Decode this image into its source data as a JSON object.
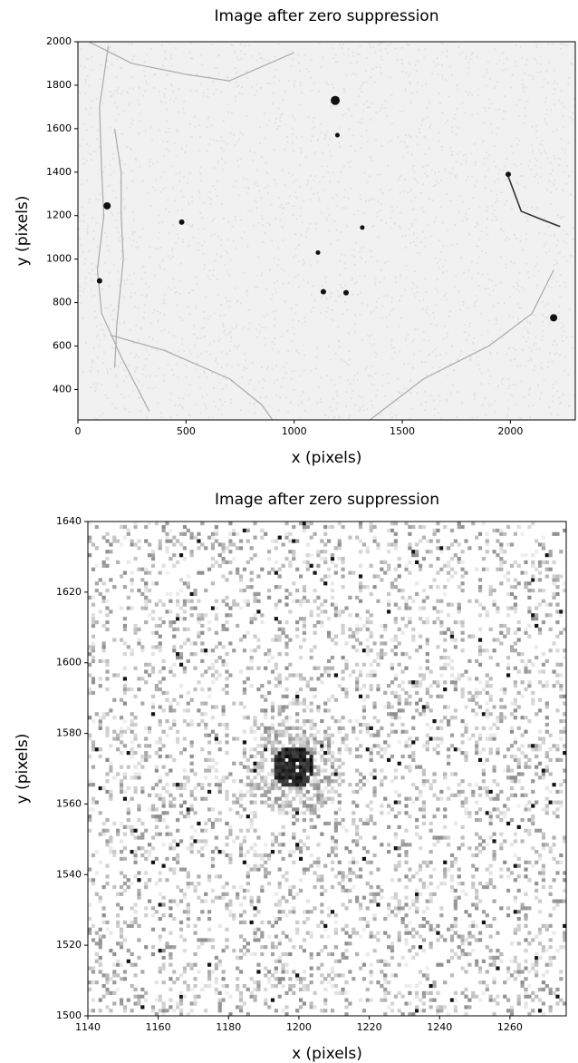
{
  "chart_data": [
    {
      "type": "image",
      "title": "Image after zero suppression",
      "x_label": "x (pixels)",
      "y_label": "y (pixels)",
      "xlim": [
        0,
        2300
      ],
      "ylim": [
        260,
        2000
      ],
      "xticks": [
        0,
        500,
        1000,
        1500,
        2000
      ],
      "yticks": [
        400,
        600,
        800,
        1000,
        1200,
        1400,
        1600,
        1800,
        2000
      ]
    },
    {
      "type": "image",
      "title": "Image after zero suppression",
      "x_label": "x (pixels)",
      "y_label": "y (pixels)",
      "xlim": [
        1140,
        1276
      ],
      "ylim": [
        1500,
        1640
      ],
      "xticks": [
        1140,
        1160,
        1180,
        1200,
        1220,
        1240,
        1260
      ],
      "yticks": [
        1500,
        1520,
        1540,
        1560,
        1580,
        1600,
        1620,
        1640
      ]
    }
  ]
}
